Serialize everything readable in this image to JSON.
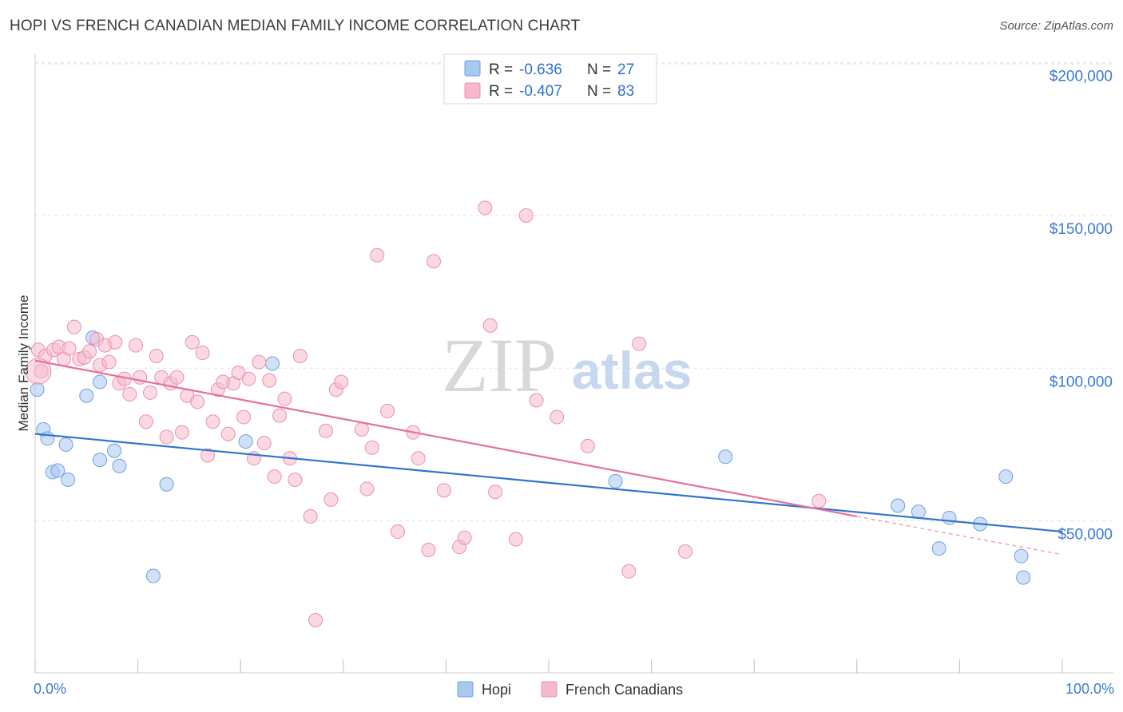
{
  "header": {
    "title": "HOPI VS FRENCH CANADIAN MEDIAN FAMILY INCOME CORRELATION CHART",
    "source": "Source: ZipAtlas.com"
  },
  "watermark": {
    "zip": "ZIP",
    "atlas": "atlas"
  },
  "stats": [
    {
      "r_label": "R =",
      "r_value": "-0.636",
      "n_label": "N =",
      "n_value": "27",
      "color": "#a9c8f0",
      "stroke": "#6fa0e0"
    },
    {
      "r_label": "R =",
      "r_value": "-0.407",
      "n_label": "N =",
      "n_value": "83",
      "color": "#f6b9cc",
      "stroke": "#ec8fae"
    }
  ],
  "legend": [
    {
      "name": "Hopi",
      "color": "#a9c8f0",
      "stroke": "#6fa0e0"
    },
    {
      "name": "French Canadians",
      "color": "#f6b9cc",
      "stroke": "#ec8fae"
    }
  ],
  "chart_data": {
    "type": "scatter",
    "ylabel": "Median Family Income",
    "x_tick_labels": [
      "0.0%",
      "100.0%"
    ],
    "y_tick_labels": [
      "$50,000",
      "$100,000",
      "$150,000",
      "$200,000"
    ],
    "y_ticks": [
      50000,
      100000,
      150000,
      200000
    ],
    "xlim": [
      0,
      100
    ],
    "ylim": [
      0,
      205000
    ],
    "grid": true,
    "series": [
      {
        "name": "Hopi",
        "color": "#6fa0e0",
        "line_color": "#2f74d0",
        "trend": {
          "x0": 0,
          "y0": 78500,
          "x1": 100,
          "y1": 46500
        },
        "points": [
          [
            0.2,
            93000
          ],
          [
            0.8,
            80000
          ],
          [
            1.2,
            77000
          ],
          [
            1.7,
            66000
          ],
          [
            2.2,
            66500
          ],
          [
            3.0,
            75000
          ],
          [
            3.2,
            63500
          ],
          [
            5.0,
            91000
          ],
          [
            5.6,
            110000
          ],
          [
            6.3,
            70000
          ],
          [
            6.3,
            95500
          ],
          [
            7.7,
            73000
          ],
          [
            8.2,
            68000
          ],
          [
            11.5,
            32000
          ],
          [
            12.8,
            62000
          ],
          [
            20.5,
            76000
          ],
          [
            23.1,
            101500
          ],
          [
            56.5,
            63000
          ],
          [
            67.2,
            71000
          ],
          [
            84.0,
            55000
          ],
          [
            86.0,
            53000
          ],
          [
            88.0,
            41000
          ],
          [
            89.0,
            51000
          ],
          [
            92.0,
            49000
          ],
          [
            94.5,
            64500
          ],
          [
            96.0,
            38500
          ],
          [
            96.2,
            31500
          ]
        ]
      },
      {
        "name": "French Canadians",
        "color": "#ec8fae",
        "line_color": "#e8709a",
        "trend": {
          "x0": 0,
          "y0": 102500,
          "x1": 80,
          "y1": 51500
        },
        "trend_ext": {
          "x0": 80,
          "y0": 51500,
          "x1": 100,
          "y1": 39000
        },
        "points": [
          [
            0.3,
            106000
          ],
          [
            0.6,
            99000
          ],
          [
            1.0,
            104000
          ],
          [
            1.8,
            106000
          ],
          [
            2.3,
            107000
          ],
          [
            2.8,
            103000
          ],
          [
            3.3,
            106500
          ],
          [
            3.8,
            113500
          ],
          [
            4.3,
            103000
          ],
          [
            4.8,
            103500
          ],
          [
            5.3,
            105500
          ],
          [
            6.0,
            109500
          ],
          [
            6.3,
            101000
          ],
          [
            6.8,
            107500
          ],
          [
            7.2,
            102000
          ],
          [
            7.8,
            108500
          ],
          [
            8.2,
            95000
          ],
          [
            8.7,
            96500
          ],
          [
            9.2,
            91500
          ],
          [
            9.8,
            107500
          ],
          [
            10.2,
            97000
          ],
          [
            10.8,
            82500
          ],
          [
            11.2,
            92000
          ],
          [
            11.8,
            104000
          ],
          [
            12.3,
            97000
          ],
          [
            12.8,
            77500
          ],
          [
            13.2,
            95000
          ],
          [
            13.8,
            97000
          ],
          [
            14.3,
            79000
          ],
          [
            14.8,
            91000
          ],
          [
            15.3,
            108500
          ],
          [
            15.8,
            89000
          ],
          [
            16.3,
            105000
          ],
          [
            16.8,
            71500
          ],
          [
            17.3,
            82500
          ],
          [
            17.8,
            93000
          ],
          [
            18.3,
            95500
          ],
          [
            18.8,
            78500
          ],
          [
            19.3,
            95000
          ],
          [
            19.8,
            98500
          ],
          [
            20.3,
            84000
          ],
          [
            20.8,
            96500
          ],
          [
            21.3,
            70500
          ],
          [
            21.8,
            102000
          ],
          [
            22.3,
            75500
          ],
          [
            22.8,
            96000
          ],
          [
            23.3,
            64500
          ],
          [
            23.8,
            84500
          ],
          [
            24.3,
            90000
          ],
          [
            24.8,
            70500
          ],
          [
            25.3,
            63500
          ],
          [
            25.8,
            104000
          ],
          [
            26.8,
            51500
          ],
          [
            27.3,
            17500
          ],
          [
            28.3,
            79500
          ],
          [
            28.8,
            57000
          ],
          [
            29.3,
            93000
          ],
          [
            29.8,
            95500
          ],
          [
            31.8,
            80000
          ],
          [
            32.3,
            60500
          ],
          [
            32.8,
            74000
          ],
          [
            33.3,
            137000
          ],
          [
            34.3,
            86000
          ],
          [
            35.3,
            46500
          ],
          [
            36.8,
            79000
          ],
          [
            37.3,
            70500
          ],
          [
            38.3,
            40500
          ],
          [
            38.8,
            135000
          ],
          [
            39.8,
            60000
          ],
          [
            41.3,
            41500
          ],
          [
            41.8,
            44500
          ],
          [
            43.8,
            152500
          ],
          [
            44.3,
            114000
          ],
          [
            44.8,
            59500
          ],
          [
            46.8,
            44000
          ],
          [
            47.8,
            150000
          ],
          [
            48.8,
            89500
          ],
          [
            50.8,
            84000
          ],
          [
            53.8,
            74500
          ],
          [
            57.8,
            33500
          ],
          [
            58.8,
            108000
          ],
          [
            63.3,
            40000
          ],
          [
            76.3,
            56500
          ]
        ]
      }
    ]
  }
}
